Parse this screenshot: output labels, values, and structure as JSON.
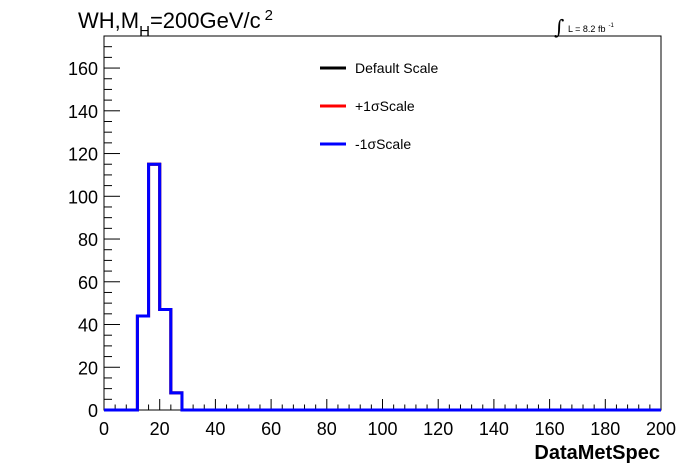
{
  "chart_data": {
    "type": "line",
    "title": {
      "prefix": "WH,M",
      "subscript": "H",
      "middle": "=200GeV/c",
      "superscript": "2"
    },
    "luminosity": {
      "integral": "∫",
      "text": "L = 8.2 fb",
      "superscript": "-1"
    },
    "xlabel": "DataMetSpec",
    "ylabel": "",
    "xlim": [
      0,
      200
    ],
    "ylim": [
      0,
      175
    ],
    "x_ticks": [
      0,
      20,
      40,
      60,
      80,
      100,
      120,
      140,
      160,
      180,
      200
    ],
    "y_ticks": [
      0,
      20,
      40,
      60,
      80,
      100,
      120,
      140,
      160
    ],
    "bin_edges": [
      12,
      16,
      20,
      24,
      28
    ],
    "legend_position": "top-center",
    "grid": false,
    "series": [
      {
        "name": "Default Scale",
        "color": "#000000",
        "values": [
          44,
          115,
          47,
          8
        ]
      },
      {
        "name": "+1σScale",
        "color": "#ff0000",
        "values": [
          44,
          115,
          47,
          8
        ]
      },
      {
        "name": "-1σScale",
        "color": "#0000ff",
        "values": [
          44,
          115,
          47,
          8
        ]
      }
    ]
  }
}
